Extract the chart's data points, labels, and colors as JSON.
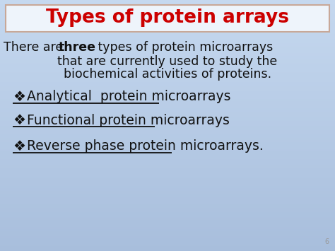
{
  "title": "Types of protein arrays",
  "title_color": "#cc0000",
  "title_fontsize": 19,
  "title_box_edge_color": "#c8a898",
  "title_box_face_color": "#eef4fb",
  "body_text_line1": "There are ",
  "body_text_bold": "three",
  "body_text_line2": " types of protein microarrays",
  "body_text_line3": "that are currently used to study the",
  "body_text_line4": "biochemical activities of proteins.",
  "body_fontsize": 12.5,
  "body_color": "#111111",
  "bullet_symbol": "❖",
  "bullet_items": [
    "Analytical  protein microarrays",
    "Functional protein microarrays",
    "Reverse phase protein microarrays."
  ],
  "bullet_fontsize": 13.5,
  "bullet_color": "#111111",
  "bg_color_top": "#c5d8ef",
  "bg_color_bottom": "#a8bedc",
  "slide_number": "6",
  "slide_number_color": "#999999",
  "slide_number_fontsize": 7
}
